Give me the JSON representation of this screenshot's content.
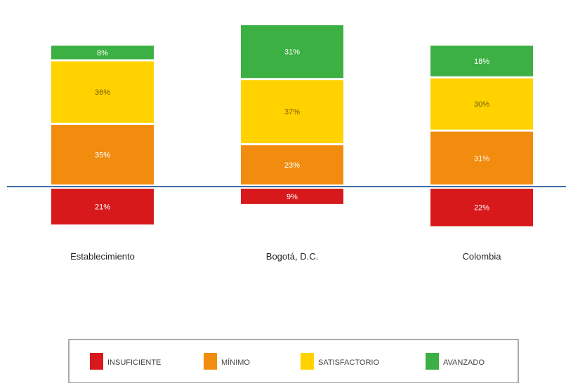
{
  "chart_data": {
    "type": "bar",
    "stacked": true,
    "diverging": true,
    "baseline_series": "INSUFICIENTE",
    "categories": [
      "Establecimiento",
      "Bogotá, D.C.",
      "Colombia"
    ],
    "series": [
      {
        "name": "INSUFICIENTE",
        "color": "#d7191c",
        "values": [
          21,
          9,
          22
        ],
        "labels": [
          "21%",
          "9%",
          "22%"
        ],
        "side": "below"
      },
      {
        "name": "MÍNIMO",
        "color": "#f28c0f",
        "values": [
          35,
          23,
          31
        ],
        "labels": [
          "35%",
          "23%",
          "31%"
        ],
        "side": "above"
      },
      {
        "name": "SATISFACTORIO",
        "color": "#ffd200",
        "values": [
          36,
          37,
          30
        ],
        "labels": [
          "36%",
          "37%",
          "30%"
        ],
        "side": "above"
      },
      {
        "name": "AVANZADO",
        "color": "#3cb043",
        "values": [
          8,
          31,
          18
        ],
        "labels": [
          "8%",
          "31%",
          "18%"
        ],
        "side": "above"
      }
    ],
    "baseline_color": "#3a6ea5",
    "title": "",
    "xlabel": "",
    "ylabel": "",
    "legend": {
      "position": "bottom"
    },
    "grid": false
  }
}
